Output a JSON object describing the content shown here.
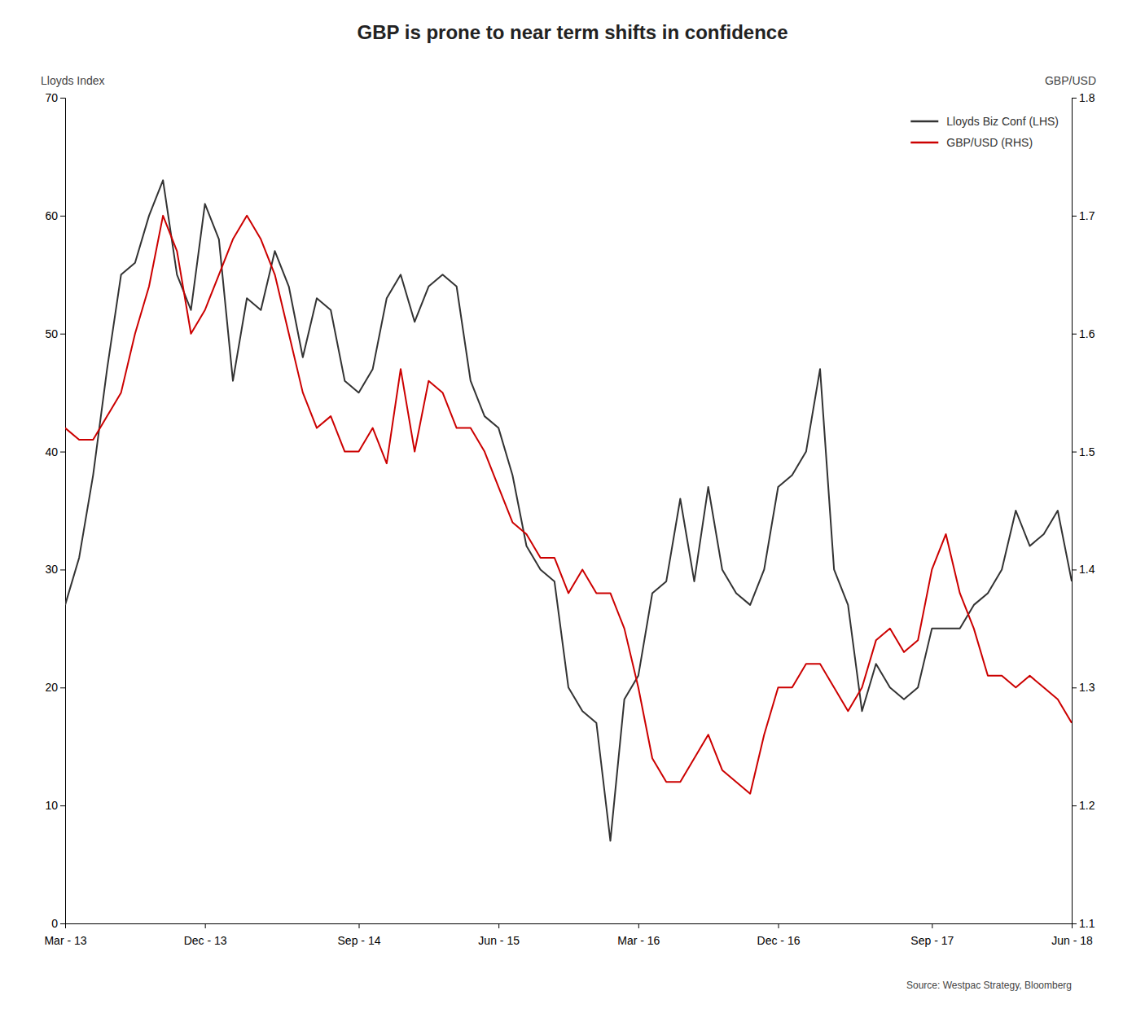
{
  "chart_data": {
    "type": "line",
    "title": "GBP is prone to near term shifts in confidence",
    "ylabel": "Lloyds Index",
    "y2label": "GBP/USD",
    "annotations": [
      "Source: Westpac Strategy, Bloomberg"
    ],
    "categories": [
      "Mar - 13",
      null,
      null,
      null,
      null,
      null,
      null,
      null,
      null,
      null,
      "Dec - 13",
      null,
      null,
      null,
      null,
      null,
      null,
      null,
      null,
      null,
      null,
      "Sep - 14",
      null,
      null,
      null,
      null,
      null,
      null,
      null,
      null,
      null,
      "Jun - 15",
      null,
      null,
      null,
      null,
      null,
      null,
      null,
      null,
      null,
      "Mar - 16",
      null,
      null,
      null,
      null,
      null,
      null,
      null,
      null,
      null,
      "Dec - 16",
      null,
      null,
      null,
      null,
      null,
      null,
      null,
      null,
      null,
      null,
      "Sep - 17",
      null,
      null,
      null,
      null,
      null,
      null,
      null,
      null,
      null,
      "Jun - 18"
    ],
    "series": [
      {
        "name": "Lloyds Biz Conf (LHS)",
        "color": "#333333",
        "values": [
          27,
          31,
          38,
          47,
          55,
          56,
          60,
          63,
          55,
          52,
          61,
          58,
          46,
          53,
          52,
          57,
          54,
          48,
          53,
          52,
          46,
          45,
          47,
          53,
          55,
          51,
          54,
          55,
          54,
          46,
          43,
          42,
          38,
          32,
          30,
          29,
          20,
          18,
          17,
          7,
          19,
          21,
          28,
          29,
          36,
          29,
          37,
          30,
          28,
          27,
          30,
          37,
          38,
          40,
          47,
          30,
          27,
          18,
          22,
          20,
          19,
          20,
          25,
          25,
          25,
          27,
          28,
          30,
          35,
          32,
          33,
          35,
          29
        ]
      },
      {
        "name": "GBP/USD (RHS)",
        "color": "#cc0000",
        "axis": "y2",
        "values": [
          1.52,
          1.51,
          1.51,
          1.53,
          1.55,
          1.6,
          1.64,
          1.7,
          1.67,
          1.6,
          1.62,
          1.65,
          1.68,
          1.7,
          1.68,
          1.65,
          1.6,
          1.55,
          1.52,
          1.53,
          1.5,
          1.5,
          1.52,
          1.49,
          1.57,
          1.5,
          1.56,
          1.55,
          1.52,
          1.52,
          1.5,
          1.47,
          1.44,
          1.43,
          1.41,
          1.41,
          1.38,
          1.4,
          1.38,
          1.38,
          1.35,
          1.3,
          1.24,
          1.22,
          1.22,
          1.24,
          1.26,
          1.23,
          1.22,
          1.21,
          1.26,
          1.3,
          1.3,
          1.32,
          1.32,
          1.3,
          1.28,
          1.3,
          1.34,
          1.35,
          1.33,
          1.34,
          1.4,
          1.43,
          1.38,
          1.35,
          1.31,
          1.31,
          1.3,
          1.31,
          1.3,
          1.29,
          1.27
        ]
      }
    ],
    "ylim": [
      0,
      70
    ],
    "yticks": [
      0,
      10,
      20,
      30,
      40,
      50,
      60,
      70
    ],
    "y2lim": [
      1.1,
      1.8
    ],
    "y2ticks": [
      1.1,
      1.2,
      1.3,
      1.4,
      1.5,
      1.6,
      1.7,
      1.8
    ],
    "grid": false,
    "legend": "upper right"
  }
}
